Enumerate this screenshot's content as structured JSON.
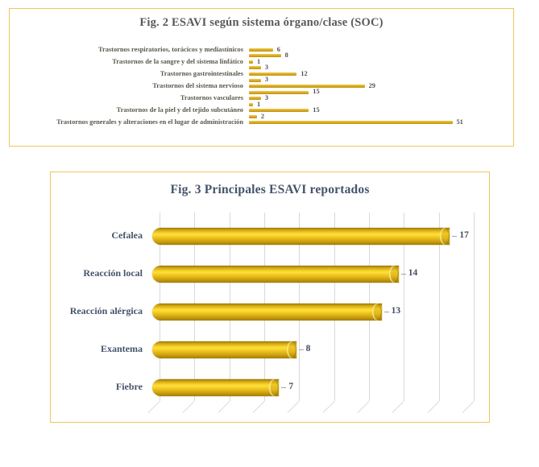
{
  "colors": {
    "bar_gold": "#d9a71d",
    "box_border": "#eec659",
    "gridline": "#d9d9d9",
    "fig2_title_color": "#595959",
    "fig3_title_color": "#44546a",
    "fig2_label_color": "#5a584d",
    "fig3_label_color": "#44546a"
  },
  "chart_data": [
    {
      "type": "bar",
      "orientation": "horizontal",
      "title": "Fig. 2 ESAVI según sistema órgano/clase (SOC)",
      "categories": [
        "Trastornos respiratorios, torácicos y mediastínicos",
        "",
        "Trastornos de la sangre y del sistema linfático",
        "",
        "Trastornos gastrointestinales",
        "",
        "Trastornos del sistema nervioso",
        "",
        "Trastornos vasculares",
        "",
        "Trastornos de la piel y del tejido subcutáneo",
        "",
        "Trastornos generales y alteraciones en el lugar de administración"
      ],
      "values": [
        6,
        8,
        1,
        3,
        12,
        3,
        29,
        15,
        3,
        1,
        15,
        2,
        51
      ],
      "xlim": [
        0,
        51
      ],
      "grid": false,
      "data_labels": true,
      "bar_style": "flat-thin"
    },
    {
      "type": "bar",
      "orientation": "horizontal",
      "title": "Fig. 3 Principales ESAVI reportados",
      "categories": [
        "Cefalea",
        "Reacción local",
        "Reacción alérgica",
        "Exantema",
        "Fiebre"
      ],
      "values": [
        17,
        14,
        13,
        8,
        7
      ],
      "xlim": [
        0,
        18
      ],
      "gridline_step": 2,
      "grid": true,
      "data_labels": true,
      "bar_style": "cylinder-3d"
    }
  ]
}
